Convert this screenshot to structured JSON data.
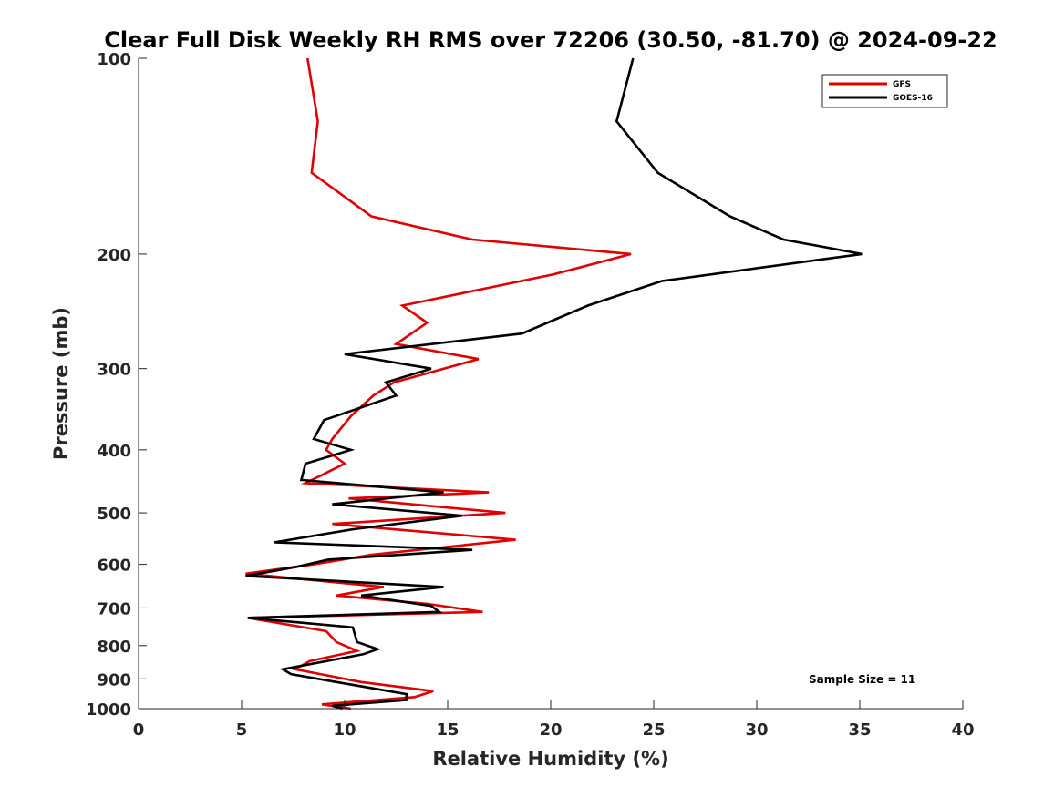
{
  "chart_data": {
    "type": "line",
    "title": "Clear Full Disk Weekly RH RMS over 72206 (30.50, -81.70) @ 2024-09-22",
    "xlabel": "Relative Humidity (%)",
    "ylabel": "Pressure (mb)",
    "xlim": [
      0,
      40
    ],
    "ylim": [
      1000,
      100
    ],
    "y_scale": "log",
    "xticks": [
      0,
      5,
      10,
      15,
      20,
      25,
      30,
      35,
      40
    ],
    "yticks": [
      100,
      200,
      300,
      400,
      500,
      600,
      700,
      800,
      900,
      1000
    ],
    "grid": false,
    "legend_position": "top-right",
    "annotation": "Sample Size = 11",
    "series": [
      {
        "name": "GFS",
        "color": "#e00000",
        "points": [
          [
            8.2,
            100
          ],
          [
            8.7,
            125
          ],
          [
            8.4,
            150
          ],
          [
            11.3,
            175
          ],
          [
            16.2,
            190
          ],
          [
            23.9,
            200
          ],
          [
            20.1,
            215
          ],
          [
            12.8,
            240
          ],
          [
            14.0,
            255
          ],
          [
            12.5,
            275
          ],
          [
            16.5,
            290
          ],
          [
            12.4,
            315
          ],
          [
            11.4,
            330
          ],
          [
            10.3,
            355
          ],
          [
            9.4,
            385
          ],
          [
            9.1,
            400
          ],
          [
            10.0,
            420
          ],
          [
            8.1,
            450
          ],
          [
            17.0,
            465
          ],
          [
            10.2,
            475
          ],
          [
            17.8,
            500
          ],
          [
            9.4,
            520
          ],
          [
            18.3,
            550
          ],
          [
            11.3,
            580
          ],
          [
            8.5,
            600
          ],
          [
            5.2,
            620
          ],
          [
            11.9,
            650
          ],
          [
            9.6,
            670
          ],
          [
            14.0,
            690
          ],
          [
            16.7,
            710
          ],
          [
            5.3,
            725
          ],
          [
            9.1,
            760
          ],
          [
            9.6,
            790
          ],
          [
            10.6,
            815
          ],
          [
            8.3,
            845
          ],
          [
            7.6,
            870
          ],
          [
            10.8,
            910
          ],
          [
            14.3,
            940
          ],
          [
            13.4,
            960
          ],
          [
            8.9,
            985
          ],
          [
            10.3,
            1000
          ]
        ]
      },
      {
        "name": "GOES-16",
        "color": "#000000",
        "points": [
          [
            24.0,
            100
          ],
          [
            23.2,
            125
          ],
          [
            25.2,
            150
          ],
          [
            28.7,
            175
          ],
          [
            31.3,
            190
          ],
          [
            35.1,
            200
          ],
          [
            25.4,
            220
          ],
          [
            21.8,
            240
          ],
          [
            18.6,
            265
          ],
          [
            10.0,
            285
          ],
          [
            14.2,
            300
          ],
          [
            12.0,
            315
          ],
          [
            12.5,
            330
          ],
          [
            9.0,
            360
          ],
          [
            8.5,
            385
          ],
          [
            10.3,
            400
          ],
          [
            8.1,
            420
          ],
          [
            7.9,
            445
          ],
          [
            14.8,
            465
          ],
          [
            9.4,
            485
          ],
          [
            15.7,
            505
          ],
          [
            10.4,
            530
          ],
          [
            6.6,
            555
          ],
          [
            16.2,
            570
          ],
          [
            9.2,
            590
          ],
          [
            7.7,
            605
          ],
          [
            5.2,
            625
          ],
          [
            14.8,
            650
          ],
          [
            10.8,
            670
          ],
          [
            14.2,
            695
          ],
          [
            14.6,
            710
          ],
          [
            5.3,
            725
          ],
          [
            10.4,
            750
          ],
          [
            10.6,
            790
          ],
          [
            11.6,
            810
          ],
          [
            10.9,
            825
          ],
          [
            7.0,
            870
          ],
          [
            7.4,
            885
          ],
          [
            9.6,
            910
          ],
          [
            13.0,
            950
          ],
          [
            13.0,
            970
          ],
          [
            9.4,
            990
          ],
          [
            9.9,
            1000
          ]
        ]
      }
    ]
  }
}
